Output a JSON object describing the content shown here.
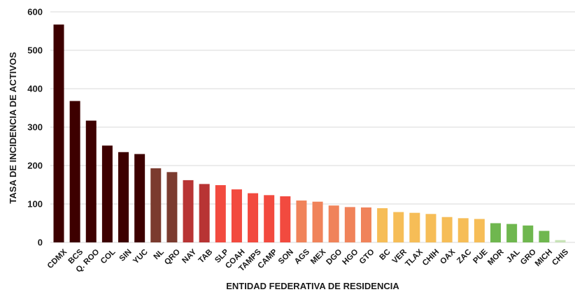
{
  "chart_data": {
    "type": "bar",
    "title": "",
    "xlabel": "ENTIDAD FEDERATIVA DE RESIDENCIA",
    "ylabel": "TASA DE INCIDENCIA DE ACTIVOS",
    "ylim": [
      0,
      600
    ],
    "yticks": [
      0,
      100,
      200,
      300,
      400,
      500,
      600
    ],
    "grid": true,
    "legend": "none",
    "categories": [
      "CDMX",
      "BCS",
      "Q. ROO",
      "COL",
      "SIN",
      "YUC",
      "NL",
      "QRO",
      "NAY",
      "TAB",
      "SLP",
      "COAH",
      "TAMPS",
      "CAMP",
      "SON",
      "AGS",
      "MEX",
      "DGO",
      "HGO",
      "GTO",
      "BC",
      "VER",
      "TLAX",
      "CHIH",
      "OAX",
      "ZAC",
      "PUE",
      "MOR",
      "JAL",
      "GRO",
      "MICH",
      "CHIS"
    ],
    "values": [
      567,
      368,
      317,
      252,
      235,
      230,
      193,
      183,
      162,
      152,
      149,
      138,
      128,
      123,
      120,
      109,
      106,
      96,
      92,
      91,
      89,
      79,
      77,
      74,
      66,
      63,
      61,
      50,
      48,
      44,
      30,
      6
    ],
    "colors": [
      "#3d0000",
      "#3d0000",
      "#3d0000",
      "#3d0000",
      "#3d0000",
      "#3d0000",
      "#7b3b2f",
      "#7b3b2f",
      "#b83434",
      "#b83434",
      "#f24a3f",
      "#f24a3f",
      "#f24a3f",
      "#f24a3f",
      "#f24a3f",
      "#f0835a",
      "#f0835a",
      "#f0835a",
      "#f0835a",
      "#f0835a",
      "#f6bd57",
      "#f6bd57",
      "#f6bd57",
      "#f6bd57",
      "#f6bd57",
      "#f6bd57",
      "#f6bd57",
      "#6fb74f",
      "#6fb74f",
      "#6fb74f",
      "#6fb74f",
      "#c7e3b7"
    ]
  }
}
